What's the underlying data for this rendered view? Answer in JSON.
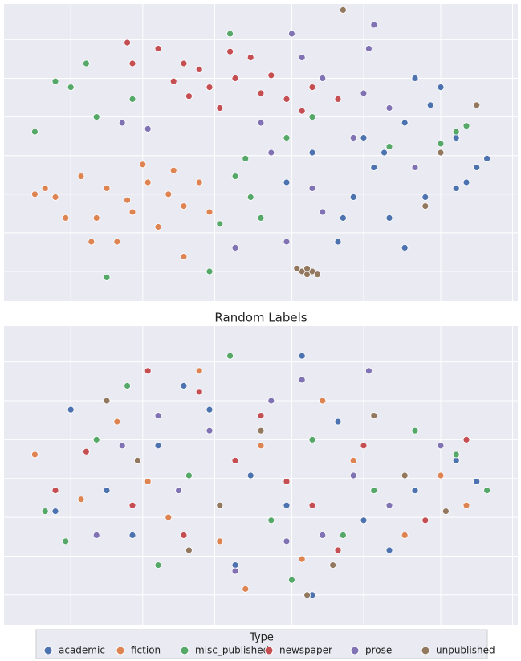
{
  "chart_data": [
    {
      "type": "scatter",
      "xlim": [
        0,
        100
      ],
      "ylim": [
        0,
        100
      ],
      "xticks": [
        13,
        27,
        41,
        56,
        70,
        85,
        99
      ],
      "yticks": [
        10,
        23,
        36,
        49,
        62,
        75,
        88
      ],
      "grid": true,
      "series": [
        {
          "name": "academic",
          "color": "#4c72b0",
          "x": [
            80,
            85,
            78,
            88,
            92,
            72,
            68,
            75,
            82,
            70,
            65,
            88,
            94,
            60,
            78,
            55,
            83,
            90,
            74,
            66
          ],
          "values": [
            75,
            72,
            60,
            55,
            45,
            45,
            35,
            28,
            35,
            55,
            20,
            38,
            48,
            50,
            18,
            40,
            66,
            40,
            50,
            28
          ]
        },
        {
          "name": "fiction",
          "color": "#dd8452",
          "x": [
            32,
            28,
            35,
            25,
            20,
            15,
            10,
            30,
            38,
            22,
            18,
            40,
            12,
            8,
            27,
            35,
            33,
            24,
            6,
            17
          ],
          "values": [
            36,
            40,
            32,
            30,
            38,
            42,
            35,
            25,
            40,
            20,
            28,
            30,
            28,
            38,
            46,
            15,
            44,
            34,
            36,
            20
          ]
        },
        {
          "name": "misc_published",
          "color": "#55a868",
          "x": [
            13,
            18,
            6,
            16,
            45,
            48,
            50,
            88,
            85,
            55,
            75,
            40,
            25,
            20,
            44,
            60,
            47,
            90,
            10,
            42
          ],
          "values": [
            72,
            62,
            57,
            80,
            42,
            35,
            28,
            57,
            53,
            55,
            52,
            10,
            68,
            8,
            90,
            62,
            48,
            59,
            74,
            26
          ]
        },
        {
          "name": "newspaper",
          "color": "#c44e52",
          "x": [
            40,
            35,
            30,
            38,
            45,
            50,
            55,
            42,
            60,
            24,
            25,
            48,
            65,
            33,
            52,
            44,
            36,
            58
          ],
          "values": [
            72,
            80,
            85,
            78,
            75,
            70,
            68,
            65,
            72,
            87,
            80,
            82,
            68,
            74,
            76,
            84,
            69,
            64
          ]
        },
        {
          "name": "prose",
          "color": "#8172b3",
          "x": [
            71,
            72,
            58,
            62,
            28,
            23,
            50,
            55,
            45,
            68,
            75,
            52,
            62,
            80,
            60,
            56,
            70
          ],
          "values": [
            85,
            93,
            82,
            75,
            58,
            60,
            60,
            20,
            18,
            55,
            65,
            50,
            30,
            45,
            38,
            90,
            70
          ]
        },
        {
          "name": "unpublished",
          "color": "#937860",
          "x": [
            58,
            59,
            60,
            57,
            59,
            61,
            92,
            85,
            82,
            66
          ],
          "values": [
            10,
            9,
            10,
            11,
            11,
            9,
            66,
            50,
            32,
            98
          ]
        }
      ]
    },
    {
      "type": "scatter",
      "title": "Random Labels",
      "legend_title": "Type",
      "legend": "bottom",
      "xlim": [
        0,
        100
      ],
      "ylim": [
        0,
        100
      ],
      "xticks": [
        13,
        27,
        41,
        56,
        70,
        85,
        99
      ],
      "yticks": [
        10,
        23,
        36,
        49,
        62,
        75,
        88
      ],
      "grid": true,
      "series": [
        {
          "name": "academic",
          "color": "#4c72b0",
          "x": [
            40,
            35,
            13,
            55,
            70,
            88,
            25,
            60,
            48,
            30,
            80,
            10,
            45,
            65,
            92,
            58,
            20,
            75
          ],
          "values": [
            72,
            80,
            72,
            40,
            35,
            55,
            30,
            10,
            50,
            60,
            45,
            38,
            20,
            68,
            48,
            90,
            45,
            25
          ]
        },
        {
          "name": "fiction",
          "color": "#dd8452",
          "x": [
            32,
            15,
            50,
            68,
            85,
            22,
            42,
            78,
            6,
            58,
            38,
            62,
            28,
            90,
            47
          ],
          "values": [
            36,
            42,
            60,
            55,
            50,
            68,
            28,
            30,
            57,
            22,
            85,
            75,
            48,
            40,
            12
          ]
        },
        {
          "name": "misc_published",
          "color": "#55a868",
          "x": [
            18,
            44,
            60,
            72,
            88,
            30,
            52,
            8,
            36,
            66,
            80,
            24,
            56,
            94,
            12
          ],
          "values": [
            62,
            90,
            62,
            45,
            57,
            20,
            35,
            38,
            50,
            30,
            65,
            80,
            15,
            45,
            28
          ]
        },
        {
          "name": "newspaper",
          "color": "#c44e52",
          "x": [
            38,
            50,
            25,
            65,
            82,
            16,
            45,
            70,
            35,
            55,
            28,
            90,
            60,
            10
          ],
          "values": [
            78,
            70,
            40,
            25,
            35,
            58,
            55,
            60,
            30,
            48,
            85,
            62,
            40,
            45
          ]
        },
        {
          "name": "prose",
          "color": "#8172b3",
          "x": [
            71,
            58,
            23,
            45,
            62,
            75,
            34,
            52,
            85,
            18,
            40,
            68,
            30,
            55
          ],
          "values": [
            85,
            82,
            60,
            18,
            30,
            40,
            45,
            75,
            60,
            30,
            65,
            50,
            70,
            28
          ]
        },
        {
          "name": "unpublished",
          "color": "#937860",
          "x": [
            59,
            42,
            72,
            26,
            86,
            50,
            64,
            36,
            20,
            78
          ],
          "values": [
            10,
            40,
            70,
            55,
            38,
            65,
            20,
            25,
            75,
            50
          ]
        }
      ]
    }
  ]
}
